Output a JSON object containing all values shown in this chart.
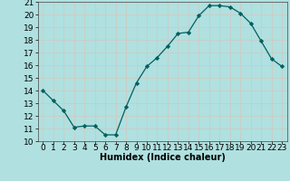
{
  "x": [
    0,
    1,
    2,
    3,
    4,
    5,
    6,
    7,
    8,
    9,
    10,
    11,
    12,
    13,
    14,
    15,
    16,
    17,
    18,
    19,
    20,
    21,
    22,
    23
  ],
  "y": [
    14,
    13.2,
    12.4,
    11.1,
    11.2,
    11.2,
    10.5,
    10.5,
    12.7,
    14.6,
    15.9,
    16.6,
    17.5,
    18.5,
    18.6,
    19.9,
    20.7,
    20.7,
    20.6,
    20.1,
    19.3,
    17.9,
    16.5,
    15.9
  ],
  "xlabel": "Humidex (Indice chaleur)",
  "xlim": [
    -0.5,
    23.5
  ],
  "ylim": [
    10,
    21
  ],
  "yticks": [
    10,
    11,
    12,
    13,
    14,
    15,
    16,
    17,
    18,
    19,
    20,
    21
  ],
  "xticks": [
    0,
    1,
    2,
    3,
    4,
    5,
    6,
    7,
    8,
    9,
    10,
    11,
    12,
    13,
    14,
    15,
    16,
    17,
    18,
    19,
    20,
    21,
    22,
    23
  ],
  "line_color": "#006060",
  "marker_color": "#006060",
  "bg_color": "#b0e0e0",
  "grid_color": "#d0c8c0",
  "label_fontsize": 7,
  "tick_fontsize": 6.5
}
